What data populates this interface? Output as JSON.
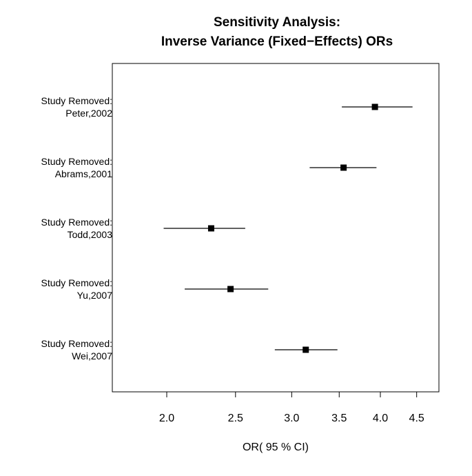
{
  "chart_data": {
    "type": "forest",
    "title_lines": [
      "Sensitivity Analysis:",
      "Inverse Variance (Fixed−Effects) ORs"
    ],
    "xlabel": "OR( 95 % CI)",
    "x_scale": "log",
    "xlim": [
      1.6,
      4.8
    ],
    "x_ticks": [
      2.0,
      2.5,
      3.0,
      3.5,
      4.0,
      4.5
    ],
    "x_tick_labels": [
      "2.0",
      "2.5",
      "3.0",
      "3.5",
      "4.0",
      "4.5"
    ],
    "rows": [
      {
        "label_top": "Study Removed:",
        "label_bottom": "Peter,2002",
        "or": 3.93,
        "ci_low": 3.53,
        "ci_high": 4.44
      },
      {
        "label_top": "Study Removed:",
        "label_bottom": "Abrams,2001",
        "or": 3.55,
        "ci_low": 3.18,
        "ci_high": 3.95
      },
      {
        "label_top": "Study Removed:",
        "label_bottom": "Todd,2003",
        "or": 2.31,
        "ci_low": 1.98,
        "ci_high": 2.58
      },
      {
        "label_top": "Study Removed:",
        "label_bottom": "Yu,2007",
        "or": 2.46,
        "ci_low": 2.12,
        "ci_high": 2.78
      },
      {
        "label_top": "Study Removed:",
        "label_bottom": "Wei,2007",
        "or": 3.14,
        "ci_low": 2.84,
        "ci_high": 3.48
      }
    ]
  }
}
